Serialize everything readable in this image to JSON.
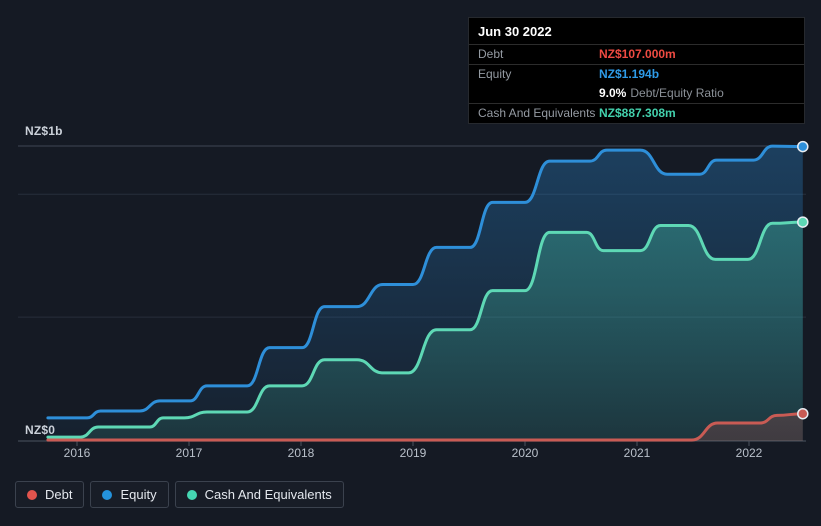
{
  "tooltip": {
    "date": "Jun 30 2022",
    "debt_label": "Debt",
    "debt_value": "NZ$107.000m",
    "equity_label": "Equity",
    "equity_value": "NZ$1.194b",
    "ratio_value": "9.0%",
    "ratio_label": "Debt/Equity Ratio",
    "cash_label": "Cash And Equivalents",
    "cash_value": "NZ$887.308m"
  },
  "axis": {
    "y_top_label": "NZ$1b",
    "y_zero_label": "NZ$0",
    "x_years": [
      2016,
      2017,
      2018,
      2019,
      2020,
      2021,
      2022
    ]
  },
  "legend": [
    {
      "label": "Debt",
      "color": "#e2544d"
    },
    {
      "label": "Equity",
      "color": "#2492db"
    },
    {
      "label": "Cash And Equivalents",
      "color": "#45d6b2"
    }
  ],
  "colors": {
    "background": "#151a24",
    "grid_top": "#3f4755",
    "grid": "#272e3b",
    "axis": "#3a414d",
    "tick": "#4a525e",
    "debt": "#e2544d",
    "equity": "#2492db",
    "cash": "#45d6b2"
  },
  "chart_data": {
    "type": "area",
    "title": "Debt, Equity and Cash And Equivalents history",
    "x_unit": "year",
    "y_unit": "NZ$ billions",
    "xlim": [
      2015.74,
      2022.48
    ],
    "ylim": [
      0,
      1.29
    ],
    "gridline_values": [
      0,
      0.5,
      1.0
    ],
    "legend_position": "bottom-left",
    "latest": {
      "date": "Jun 30 2022",
      "debt": 0.107,
      "equity": 1.194,
      "cash": 0.887308,
      "debt_to_equity_ratio_pct": 9.0
    },
    "series": [
      {
        "id": "equity",
        "name": "Equity",
        "color": "#2e8fd9",
        "fill_top": "rgba(42,138,212,0.34)",
        "fill_bottom": "rgba(42,138,212,0.05)",
        "points": [
          [
            2015.74,
            0.09
          ],
          [
            2016.09,
            0.09
          ],
          [
            2016.21,
            0.118
          ],
          [
            2016.56,
            0.118
          ],
          [
            2016.74,
            0.159
          ],
          [
            2017.01,
            0.159
          ],
          [
            2017.16,
            0.22
          ],
          [
            2017.52,
            0.22
          ],
          [
            2017.72,
            0.376
          ],
          [
            2018.01,
            0.376
          ],
          [
            2018.21,
            0.543
          ],
          [
            2018.5,
            0.543
          ],
          [
            2018.73,
            0.633
          ],
          [
            2019.0,
            0.633
          ],
          [
            2019.21,
            0.784
          ],
          [
            2019.51,
            0.784
          ],
          [
            2019.71,
            0.967
          ],
          [
            2020.0,
            0.967
          ],
          [
            2020.22,
            1.135
          ],
          [
            2020.58,
            1.135
          ],
          [
            2020.73,
            1.18
          ],
          [
            2021.03,
            1.18
          ],
          [
            2021.27,
            1.082
          ],
          [
            2021.56,
            1.082
          ],
          [
            2021.71,
            1.139
          ],
          [
            2022.04,
            1.139
          ],
          [
            2022.21,
            1.196
          ],
          [
            2022.48,
            1.194
          ]
        ]
      },
      {
        "id": "cash",
        "name": "Cash And Equivalents",
        "color": "#5ed8b5",
        "fill_top": "rgba(72,204,172,0.42)",
        "fill_bottom": "rgba(72,204,172,0.12)",
        "points": [
          [
            2015.74,
            0.012
          ],
          [
            2016.03,
            0.012
          ],
          [
            2016.19,
            0.053
          ],
          [
            2016.65,
            0.053
          ],
          [
            2016.77,
            0.09
          ],
          [
            2016.96,
            0.09
          ],
          [
            2017.16,
            0.114
          ],
          [
            2017.52,
            0.114
          ],
          [
            2017.72,
            0.22
          ],
          [
            2018.01,
            0.22
          ],
          [
            2018.21,
            0.327
          ],
          [
            2018.5,
            0.327
          ],
          [
            2018.73,
            0.273
          ],
          [
            2018.96,
            0.273
          ],
          [
            2019.21,
            0.449
          ],
          [
            2019.51,
            0.449
          ],
          [
            2019.71,
            0.608
          ],
          [
            2020.0,
            0.608
          ],
          [
            2020.22,
            0.845
          ],
          [
            2020.55,
            0.845
          ],
          [
            2020.7,
            0.771
          ],
          [
            2021.03,
            0.771
          ],
          [
            2021.21,
            0.873
          ],
          [
            2021.46,
            0.873
          ],
          [
            2021.7,
            0.735
          ],
          [
            2021.99,
            0.735
          ],
          [
            2022.21,
            0.882
          ],
          [
            2022.48,
            0.887
          ]
        ]
      },
      {
        "id": "debt",
        "name": "Debt",
        "color": "#c95b54",
        "fill_top": "rgba(222,84,78,0.40)",
        "fill_bottom": "rgba(222,84,78,0.18)",
        "points": [
          [
            2015.74,
            0.0
          ],
          [
            2021.49,
            0.0
          ],
          [
            2021.72,
            0.069
          ],
          [
            2022.1,
            0.069
          ],
          [
            2022.25,
            0.1
          ],
          [
            2022.48,
            0.107
          ]
        ]
      }
    ]
  }
}
